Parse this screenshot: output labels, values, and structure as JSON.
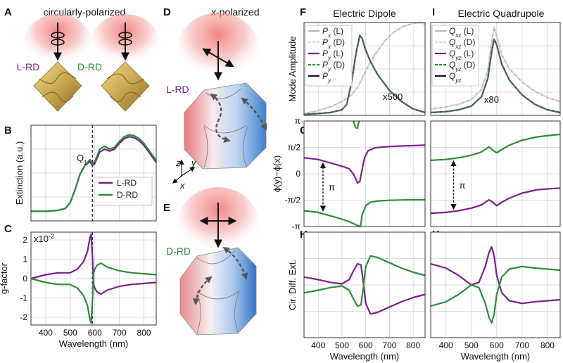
{
  "panel_labels": {
    "A": "A",
    "B": "B",
    "C": "C",
    "D": "D",
    "E": "E",
    "F": "F",
    "G": "G",
    "H": "H",
    "I": "I",
    "J": "J",
    "K": "K"
  },
  "illustrations": {
    "A_title": "circularly-polarized",
    "A_left_label": "L-RD",
    "A_right_label": "D-RD",
    "D_title_prefix": "x",
    "D_title_suffix": "-polarized",
    "D_label": "L-RD",
    "E_label": "D-RD",
    "axis_z": "z",
    "axis_y": "y",
    "axis_x": "x",
    "colors": {
      "gold": "#c9a74e",
      "glow": "#f08080",
      "blue": "#4f8fd6",
      "red": "#e06a6a"
    }
  },
  "chart_data": [
    {
      "id": "B",
      "type": "line",
      "ylabel": "Extinction (a.u.)",
      "xlim": [
        340,
        850
      ],
      "xticks": [
        400,
        500,
        600,
        700,
        800
      ],
      "ylim": [
        0,
        1
      ],
      "vline": 590,
      "annotation": {
        "text": "Q",
        "sub": "1"
      },
      "legend": [
        "L-RD",
        "D-RD"
      ],
      "series": [
        {
          "name": "L-RD",
          "color": "#7b1f8e",
          "dash": false,
          "x": [
            340,
            400,
            450,
            480,
            500,
            520,
            540,
            560,
            580,
            590,
            600,
            620,
            640,
            660,
            680,
            700,
            720,
            740,
            760,
            780,
            800,
            820,
            850
          ],
          "y": [
            0.1,
            0.1,
            0.11,
            0.13,
            0.19,
            0.33,
            0.49,
            0.58,
            0.62,
            0.58,
            0.6,
            0.72,
            0.75,
            0.73,
            0.75,
            0.81,
            0.86,
            0.88,
            0.87,
            0.84,
            0.79,
            0.72,
            0.61
          ]
        },
        {
          "name": "D-RD",
          "color": "#2e8b3c",
          "dash": false,
          "x": [
            340,
            400,
            450,
            480,
            500,
            520,
            540,
            560,
            580,
            590,
            600,
            620,
            640,
            660,
            680,
            700,
            720,
            740,
            760,
            780,
            800,
            820,
            850
          ],
          "y": [
            0.1,
            0.1,
            0.11,
            0.13,
            0.19,
            0.33,
            0.49,
            0.58,
            0.64,
            0.6,
            0.62,
            0.75,
            0.78,
            0.75,
            0.77,
            0.83,
            0.88,
            0.9,
            0.89,
            0.86,
            0.81,
            0.74,
            0.63
          ]
        }
      ]
    },
    {
      "id": "C",
      "type": "line",
      "xlabel": "Wavelength (nm)",
      "ylabel": "g-factor",
      "xlim": [
        340,
        850
      ],
      "xticks": [
        400,
        500,
        600,
        700,
        800
      ],
      "ylim": [
        -2.4,
        2.4
      ],
      "yticks": [
        -2,
        -1,
        0,
        1,
        2
      ],
      "scale_label": "x10",
      "scale_exp": "-2",
      "vline": 590,
      "series": [
        {
          "name": "L-RD",
          "color": "#7b1f8e",
          "dash": false,
          "x": [
            340,
            400,
            450,
            500,
            530,
            555,
            570,
            580,
            585,
            590,
            595,
            600,
            610,
            625,
            650,
            700,
            750,
            800,
            850
          ],
          "y": [
            0.0,
            0.2,
            0.3,
            0.3,
            0.5,
            0.9,
            1.4,
            2.1,
            2.3,
            1.2,
            -0.3,
            -0.5,
            -0.7,
            -0.8,
            -0.6,
            -0.4,
            -0.3,
            -0.25,
            -0.2
          ]
        },
        {
          "name": "D-RD",
          "color": "#2e8b3c",
          "dash": false,
          "x": [
            340,
            400,
            450,
            500,
            530,
            555,
            570,
            580,
            585,
            590,
            595,
            600,
            610,
            625,
            650,
            700,
            750,
            800,
            850
          ],
          "y": [
            0.0,
            -0.2,
            -0.3,
            -0.3,
            -0.5,
            -0.9,
            -1.4,
            -2.1,
            -2.3,
            -1.2,
            0.3,
            0.5,
            0.7,
            0.8,
            0.6,
            0.4,
            0.3,
            0.25,
            0.2
          ]
        }
      ]
    },
    {
      "id": "F",
      "type": "line",
      "title": "Electric Dipole",
      "ylabel": "Mode Amplitude",
      "xlim": [
        340,
        850
      ],
      "xticks": [
        400,
        500,
        600,
        700,
        800
      ],
      "ylim": [
        0,
        1
      ],
      "annotation": {
        "text": "x500"
      },
      "legend": [
        {
          "main": "P",
          "sub": "x",
          "rest": " (L)"
        },
        {
          "main": "P",
          "sub": "x",
          "rest": " (D)"
        },
        {
          "main": "P",
          "sub": "y",
          "rest": " (L)"
        },
        {
          "main": "P",
          "sub": "y",
          "rest": " (D)"
        },
        {
          "main": "P",
          "sub": "y",
          "rest": ""
        }
      ],
      "series": [
        {
          "name": "Px (L)",
          "color": "#b8b8b8",
          "dash": false,
          "x": [
            340,
            400,
            450,
            500,
            540,
            570,
            600,
            640,
            680,
            720,
            760,
            800,
            830,
            850
          ],
          "y": [
            0.02,
            0.05,
            0.09,
            0.15,
            0.22,
            0.32,
            0.48,
            0.66,
            0.8,
            0.9,
            0.96,
            0.99,
            1.0,
            0.98
          ]
        },
        {
          "name": "Px (D)",
          "color": "#d8d8d8",
          "dash": true,
          "x": [
            340,
            400,
            450,
            500,
            540,
            570,
            600,
            640,
            680,
            720,
            760,
            800,
            830,
            850
          ],
          "y": [
            0.02,
            0.05,
            0.09,
            0.15,
            0.22,
            0.32,
            0.48,
            0.66,
            0.8,
            0.9,
            0.96,
            0.99,
            1.0,
            0.98
          ]
        },
        {
          "name": "Py (L)",
          "color": "#7b1f8e",
          "dash": false,
          "x": [
            340,
            400,
            450,
            500,
            520,
            540,
            560,
            575,
            585,
            600,
            620,
            650,
            700,
            750,
            800,
            850
          ],
          "y": [
            0.01,
            0.02,
            0.03,
            0.06,
            0.12,
            0.35,
            0.68,
            0.86,
            0.83,
            0.7,
            0.58,
            0.44,
            0.27,
            0.15,
            0.07,
            0.03
          ]
        },
        {
          "name": "Py (D)",
          "color": "#2e8b3c",
          "dash": true,
          "x": [
            340,
            400,
            450,
            500,
            520,
            540,
            560,
            575,
            585,
            600,
            620,
            650,
            700,
            750,
            800,
            850
          ],
          "y": [
            0.01,
            0.02,
            0.03,
            0.06,
            0.12,
            0.35,
            0.68,
            0.86,
            0.83,
            0.7,
            0.58,
            0.44,
            0.27,
            0.15,
            0.07,
            0.03
          ]
        }
      ]
    },
    {
      "id": "I",
      "type": "line",
      "title": "Electric Quadrupole",
      "xlim": [
        340,
        850
      ],
      "xticks": [
        400,
        500,
        600,
        700,
        800
      ],
      "ylim": [
        0,
        1
      ],
      "annotation": {
        "text": "x80"
      },
      "legend": [
        {
          "main": "Q",
          "sub": "xz",
          "rest": " (L)"
        },
        {
          "main": "Q",
          "sub": "xz",
          "rest": " (D)"
        },
        {
          "main": "Q",
          "sub": "yz",
          "rest": " (L)"
        },
        {
          "main": "Q",
          "sub": "yz",
          "rest": " (D)"
        },
        {
          "main": "Q",
          "sub": "yz",
          "rest": ""
        }
      ],
      "series": [
        {
          "name": "Qxz (L)",
          "color": "#b8b8b8",
          "dash": false,
          "x": [
            340,
            400,
            450,
            500,
            540,
            565,
            580,
            590,
            600,
            620,
            650,
            700,
            750,
            800,
            850
          ],
          "y": [
            0.07,
            0.09,
            0.12,
            0.17,
            0.28,
            0.48,
            0.78,
            0.95,
            0.85,
            0.65,
            0.5,
            0.36,
            0.26,
            0.19,
            0.15
          ]
        },
        {
          "name": "Qxz (D)",
          "color": "#d8d8d8",
          "dash": true,
          "x": [
            340,
            400,
            450,
            500,
            540,
            565,
            580,
            590,
            600,
            620,
            650,
            700,
            750,
            800,
            850
          ],
          "y": [
            0.07,
            0.09,
            0.12,
            0.17,
            0.28,
            0.48,
            0.78,
            0.95,
            0.85,
            0.65,
            0.5,
            0.36,
            0.26,
            0.19,
            0.15
          ]
        },
        {
          "name": "Qyz (L)",
          "color": "#7b1f8e",
          "dash": false,
          "x": [
            340,
            400,
            450,
            500,
            540,
            565,
            580,
            590,
            600,
            620,
            650,
            700,
            750,
            800,
            850
          ],
          "y": [
            0.03,
            0.04,
            0.06,
            0.1,
            0.2,
            0.4,
            0.68,
            0.82,
            0.76,
            0.55,
            0.38,
            0.22,
            0.12,
            0.06,
            0.03
          ]
        },
        {
          "name": "Qyz (D)",
          "color": "#2e8b3c",
          "dash": true,
          "x": [
            340,
            400,
            450,
            500,
            540,
            565,
            580,
            590,
            600,
            620,
            650,
            700,
            750,
            800,
            850
          ],
          "y": [
            0.03,
            0.04,
            0.06,
            0.1,
            0.2,
            0.4,
            0.68,
            0.82,
            0.76,
            0.55,
            0.38,
            0.22,
            0.12,
            0.06,
            0.03
          ]
        }
      ]
    },
    {
      "id": "G",
      "type": "line",
      "ylabel": "ϕ(y)−ϕ(x)",
      "xlim": [
        340,
        850
      ],
      "xticks": [
        400,
        500,
        600,
        700,
        800
      ],
      "ylim": [
        -3.1416,
        3.1416
      ],
      "yticks": [
        -3.1416,
        -1.5708,
        0,
        1.5708,
        3.1416
      ],
      "yticklabels": [
        "-π",
        "-π/2",
        "0",
        "π/2",
        "π"
      ],
      "annotation": {
        "text": "π"
      },
      "series": [
        {
          "name": "L-RD",
          "color": "#7b1f8e",
          "dash": false,
          "x": [
            340,
            400,
            450,
            500,
            530,
            550,
            565,
            575,
            585,
            595,
            610,
            640,
            700,
            760,
            850
          ],
          "y": [
            0.95,
            0.85,
            0.65,
            0.45,
            0.3,
            -0.05,
            -0.55,
            -0.45,
            0.25,
            0.95,
            1.38,
            1.55,
            1.62,
            1.66,
            1.7
          ]
        },
        {
          "name": "D-RD",
          "color": "#2e8b3c",
          "dash": false,
          "x": [
            340,
            400,
            450,
            500,
            530,
            560,
            575,
            578
          ],
          "y": [
            -2.2,
            -2.3,
            -2.5,
            -2.7,
            -2.85,
            -3.05,
            -3.13,
            -3.14
          ]
        },
        {
          "name": "D-RD",
          "color": "#2e8b3c",
          "dash": false,
          "x": [
            578,
            585,
            600,
            620,
            650,
            700,
            760,
            850
          ],
          "y": [
            -3.14,
            -2.45,
            -1.9,
            -1.7,
            -1.62,
            -1.58,
            -1.56,
            -1.55
          ]
        },
        {
          "name": "D-RD",
          "color": "#2e8b3c",
          "dash": false,
          "x": [
            548,
            557,
            565,
            572
          ],
          "y": [
            3.14,
            2.75,
            2.72,
            3.14
          ]
        }
      ]
    },
    {
      "id": "J",
      "type": "line",
      "xlim": [
        340,
        850
      ],
      "xticks": [
        400,
        500,
        600,
        700,
        800
      ],
      "ylim": [
        -3.1416,
        3.1416
      ],
      "yticks": [
        -3.1416,
        -1.5708,
        0,
        1.5708,
        3.1416
      ],
      "annotation": {
        "text": "π"
      },
      "series": [
        {
          "name": "L-RD",
          "color": "#7b1f8e",
          "dash": false,
          "x": [
            340,
            400,
            450,
            500,
            540,
            570,
            585,
            600,
            620,
            650,
            700,
            760,
            850
          ],
          "y": [
            -2.35,
            -2.3,
            -2.2,
            -2.05,
            -1.85,
            -1.55,
            -1.7,
            -1.9,
            -1.7,
            -1.45,
            -1.15,
            -0.95,
            -0.85
          ]
        },
        {
          "name": "D-RD",
          "color": "#2e8b3c",
          "dash": false,
          "x": [
            340,
            400,
            450,
            500,
            540,
            570,
            585,
            600,
            620,
            650,
            700,
            760,
            850
          ],
          "y": [
            0.8,
            0.85,
            0.95,
            1.1,
            1.3,
            1.6,
            1.4,
            1.25,
            1.45,
            1.7,
            2.0,
            2.2,
            2.35
          ]
        }
      ]
    },
    {
      "id": "H",
      "type": "line",
      "xlabel": "Wavelength (nm)",
      "ylabel": "Cir. Diff. Ext.",
      "xlim": [
        340,
        850
      ],
      "xticks": [
        400,
        500,
        600,
        700,
        800
      ],
      "ylim": [
        -1,
        1
      ],
      "series": [
        {
          "name": "L-RD",
          "color": "#7b1f8e",
          "dash": false,
          "x": [
            340,
            400,
            450,
            500,
            530,
            550,
            565,
            580,
            590,
            600,
            620,
            650,
            700,
            750,
            800,
            850
          ],
          "y": [
            0.15,
            0.1,
            0.05,
            0.02,
            0.1,
            0.28,
            0.4,
            0.38,
            0.05,
            -0.35,
            -0.55,
            -0.52,
            -0.42,
            -0.32,
            -0.24,
            -0.18
          ]
        },
        {
          "name": "D-RD",
          "color": "#2e8b3c",
          "dash": false,
          "x": [
            340,
            400,
            450,
            500,
            530,
            550,
            565,
            580,
            590,
            600,
            620,
            650,
            700,
            750,
            800,
            850
          ],
          "y": [
            -0.15,
            -0.1,
            -0.05,
            -0.02,
            -0.1,
            -0.28,
            -0.4,
            -0.38,
            -0.05,
            0.35,
            0.55,
            0.52,
            0.42,
            0.32,
            0.24,
            0.18
          ]
        }
      ]
    },
    {
      "id": "K",
      "type": "line",
      "xlabel": "Wavelength (nm)",
      "xlim": [
        340,
        850
      ],
      "xticks": [
        400,
        500,
        600,
        700,
        800
      ],
      "ylim": [
        -1,
        1
      ],
      "series": [
        {
          "name": "L-RD",
          "color": "#7b1f8e",
          "dash": false,
          "x": [
            340,
            400,
            450,
            500,
            530,
            555,
            570,
            580,
            590,
            600,
            620,
            650,
            700,
            750,
            800,
            850
          ],
          "y": [
            0.4,
            0.32,
            0.18,
            0.0,
            0.05,
            0.35,
            0.62,
            0.72,
            0.55,
            0.18,
            -0.15,
            -0.3,
            -0.35,
            -0.32,
            -0.3,
            -0.28
          ]
        },
        {
          "name": "D-RD",
          "color": "#2e8b3c",
          "dash": false,
          "x": [
            340,
            400,
            450,
            500,
            530,
            555,
            570,
            580,
            590,
            600,
            620,
            650,
            700,
            750,
            800,
            850
          ],
          "y": [
            -0.4,
            -0.32,
            -0.18,
            0.0,
            -0.05,
            -0.35,
            -0.62,
            -0.72,
            -0.55,
            -0.18,
            0.15,
            0.3,
            0.35,
            0.32,
            0.3,
            0.28
          ]
        }
      ]
    }
  ]
}
